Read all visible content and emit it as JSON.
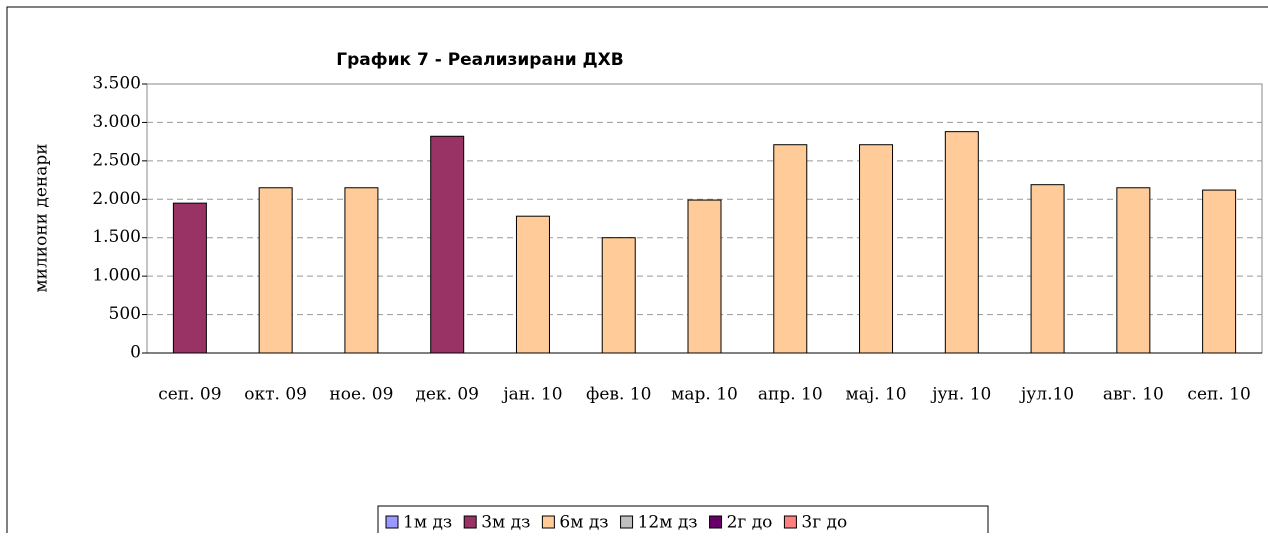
{
  "chart_data": {
    "type": "bar",
    "title": "График 7 - Реализирани ДХВ",
    "ylabel": "милиони денари",
    "categories": [
      "сеп. 09",
      "окт. 09",
      "ное. 09",
      "дек. 09",
      "јан. 10",
      "фев. 10",
      "мар. 10",
      "апр. 10",
      "мај. 10",
      "јун. 10",
      "јул.10",
      "авг. 10",
      "сеп. 10"
    ],
    "series": [
      {
        "name": "1м дз",
        "color": "#9999ff",
        "values": [
          null,
          null,
          null,
          null,
          null,
          null,
          null,
          null,
          null,
          null,
          null,
          null,
          null
        ]
      },
      {
        "name": "3м дз",
        "color": "#993366",
        "values": [
          1950,
          null,
          null,
          2820,
          null,
          null,
          null,
          null,
          null,
          null,
          null,
          null,
          null
        ]
      },
      {
        "name": "6м дз",
        "color": "#ffcc99",
        "values": [
          null,
          2150,
          2150,
          null,
          1780,
          1500,
          1990,
          2710,
          2710,
          2880,
          2190,
          2150,
          2120
        ]
      },
      {
        "name": "12м дз",
        "color": "#c0c0c0",
        "values": [
          null,
          null,
          null,
          null,
          null,
          null,
          null,
          null,
          null,
          null,
          null,
          null,
          null
        ]
      },
      {
        "name": "2г до",
        "color": "#660066",
        "values": [
          null,
          null,
          null,
          null,
          null,
          null,
          null,
          null,
          null,
          null,
          null,
          null,
          null
        ]
      },
      {
        "name": "3г до",
        "color": "#ff8080",
        "values": [
          null,
          null,
          null,
          null,
          null,
          null,
          null,
          null,
          null,
          null,
          null,
          null,
          null
        ]
      }
    ],
    "ylim": [
      0,
      3500
    ],
    "yticks": [
      0,
      500,
      {
        "value": 1000,
        "label": "1.000"
      },
      {
        "value": 1500,
        "label": "1.500"
      },
      {
        "value": 2000,
        "label": "2.000"
      },
      {
        "value": 2500,
        "label": "2.500"
      },
      {
        "value": 3000,
        "label": "3.000"
      },
      {
        "value": 3500,
        "label": "3.500"
      }
    ],
    "grid": true,
    "legend": "bottom"
  }
}
